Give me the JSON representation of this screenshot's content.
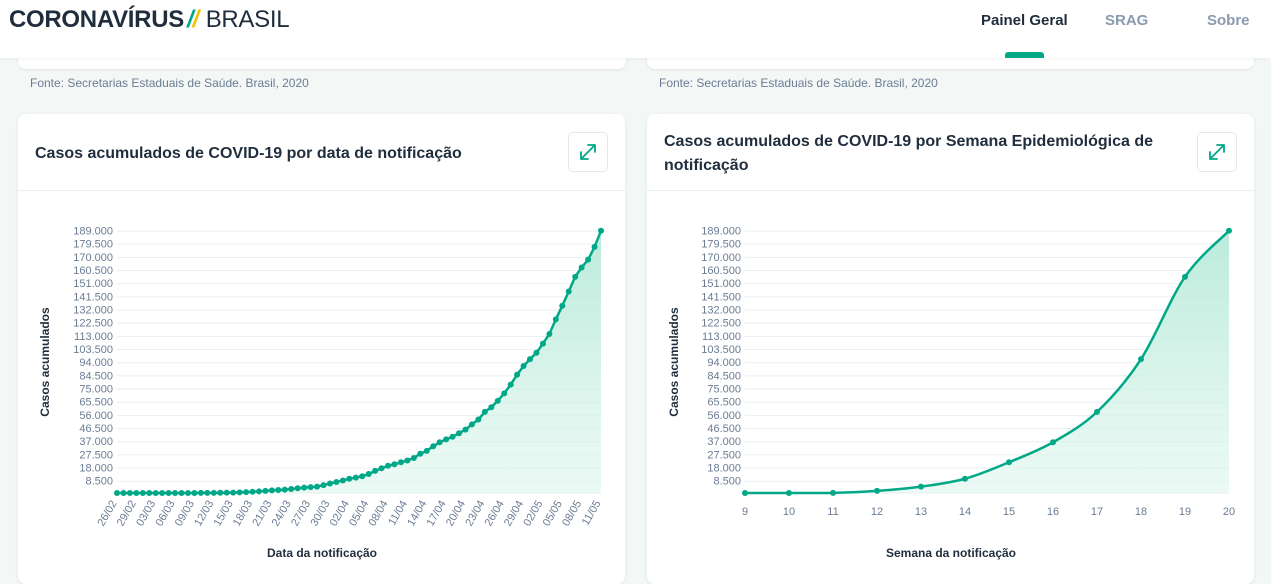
{
  "header": {
    "logo_main": "CORONAVÍRUS",
    "logo_sub": "BRASIL",
    "nav": [
      {
        "label": "Painel Geral",
        "active": true
      },
      {
        "label": "SRAG",
        "active": false
      },
      {
        "label": "Sobre",
        "active": false
      }
    ]
  },
  "source_text": "Fonte: Secretarias Estaduais de Saúde. Brasil, 2020",
  "colors": {
    "accent": "#00a888",
    "fill": "#c8eee2",
    "grid": "#e8eef0",
    "tick": "#6b7c93"
  },
  "icons": {
    "expand": "expand-arrows-icon"
  },
  "chart_data": [
    {
      "type": "area",
      "title": "Casos acumulados de COVID-19 por data de notificação",
      "xlabel": "Data da notificação",
      "ylabel": "Casos acumulados",
      "ylim": [
        0,
        189000
      ],
      "yticks": [
        "8.500",
        "18.000",
        "27.500",
        "37.000",
        "46.500",
        "56.000",
        "65.500",
        "75.000",
        "84.500",
        "94.000",
        "103.500",
        "113.000",
        "122.500",
        "132.000",
        "141.500",
        "151.000",
        "160.500",
        "170.000",
        "179.500",
        "189.000"
      ],
      "xtick_labels": [
        "26/02",
        "29/02",
        "03/03",
        "06/03",
        "09/03",
        "12/03",
        "15/03",
        "18/03",
        "21/03",
        "24/03",
        "27/03",
        "30/03",
        "02/04",
        "05/04",
        "08/04",
        "11/04",
        "14/04",
        "17/04",
        "20/04",
        "23/04",
        "26/04",
        "29/04",
        "02/05",
        "05/05",
        "08/05",
        "11/05"
      ],
      "grid": true,
      "series": [
        {
          "values": [
            1,
            1,
            1,
            2,
            2,
            2,
            2,
            3,
            8,
            13,
            19,
            25,
            34,
            52,
            77,
            121,
            200,
            234,
            291,
            428,
            621,
            904,
            1128,
            1546,
            1891,
            2201,
            2433,
            2915,
            3417,
            3904,
            4256,
            4579,
            5717,
            6836,
            7910,
            9056,
            10278,
            11130,
            12056,
            13717,
            15927,
            17857,
            19638,
            20727,
            22169,
            23430,
            25262,
            28320,
            30425,
            33682,
            36599,
            38654,
            40581,
            43079,
            45757,
            49492,
            52995,
            58509,
            61888,
            66501,
            71886,
            78162,
            85380,
            91589,
            96559,
            101147,
            107780,
            114715,
            125218,
            135106,
            145328,
            155939,
            162699,
            168331,
            177589,
            189157
          ]
        }
      ]
    },
    {
      "type": "area",
      "title": "Casos acumulados de COVID-19 por Semana Epidemiológica de notificação",
      "xlabel": "Semana da notificação",
      "ylabel": "Casos acumulados",
      "ylim": [
        0,
        189000
      ],
      "yticks": [
        "8.500",
        "18.000",
        "27.500",
        "37.000",
        "46.500",
        "56.000",
        "65.500",
        "75.000",
        "84.500",
        "94.000",
        "103.500",
        "113.000",
        "122.500",
        "132.000",
        "141.500",
        "151.000",
        "160.500",
        "170.000",
        "179.500",
        "189.000"
      ],
      "x": [
        9,
        10,
        11,
        12,
        13,
        14,
        15,
        16,
        17,
        18,
        19,
        20
      ],
      "grid": true,
      "series": [
        {
          "values": [
            2,
            25,
            121,
            1546,
            4579,
            10278,
            22169,
            36599,
            58509,
            96559,
            155939,
            189157
          ]
        }
      ]
    }
  ]
}
